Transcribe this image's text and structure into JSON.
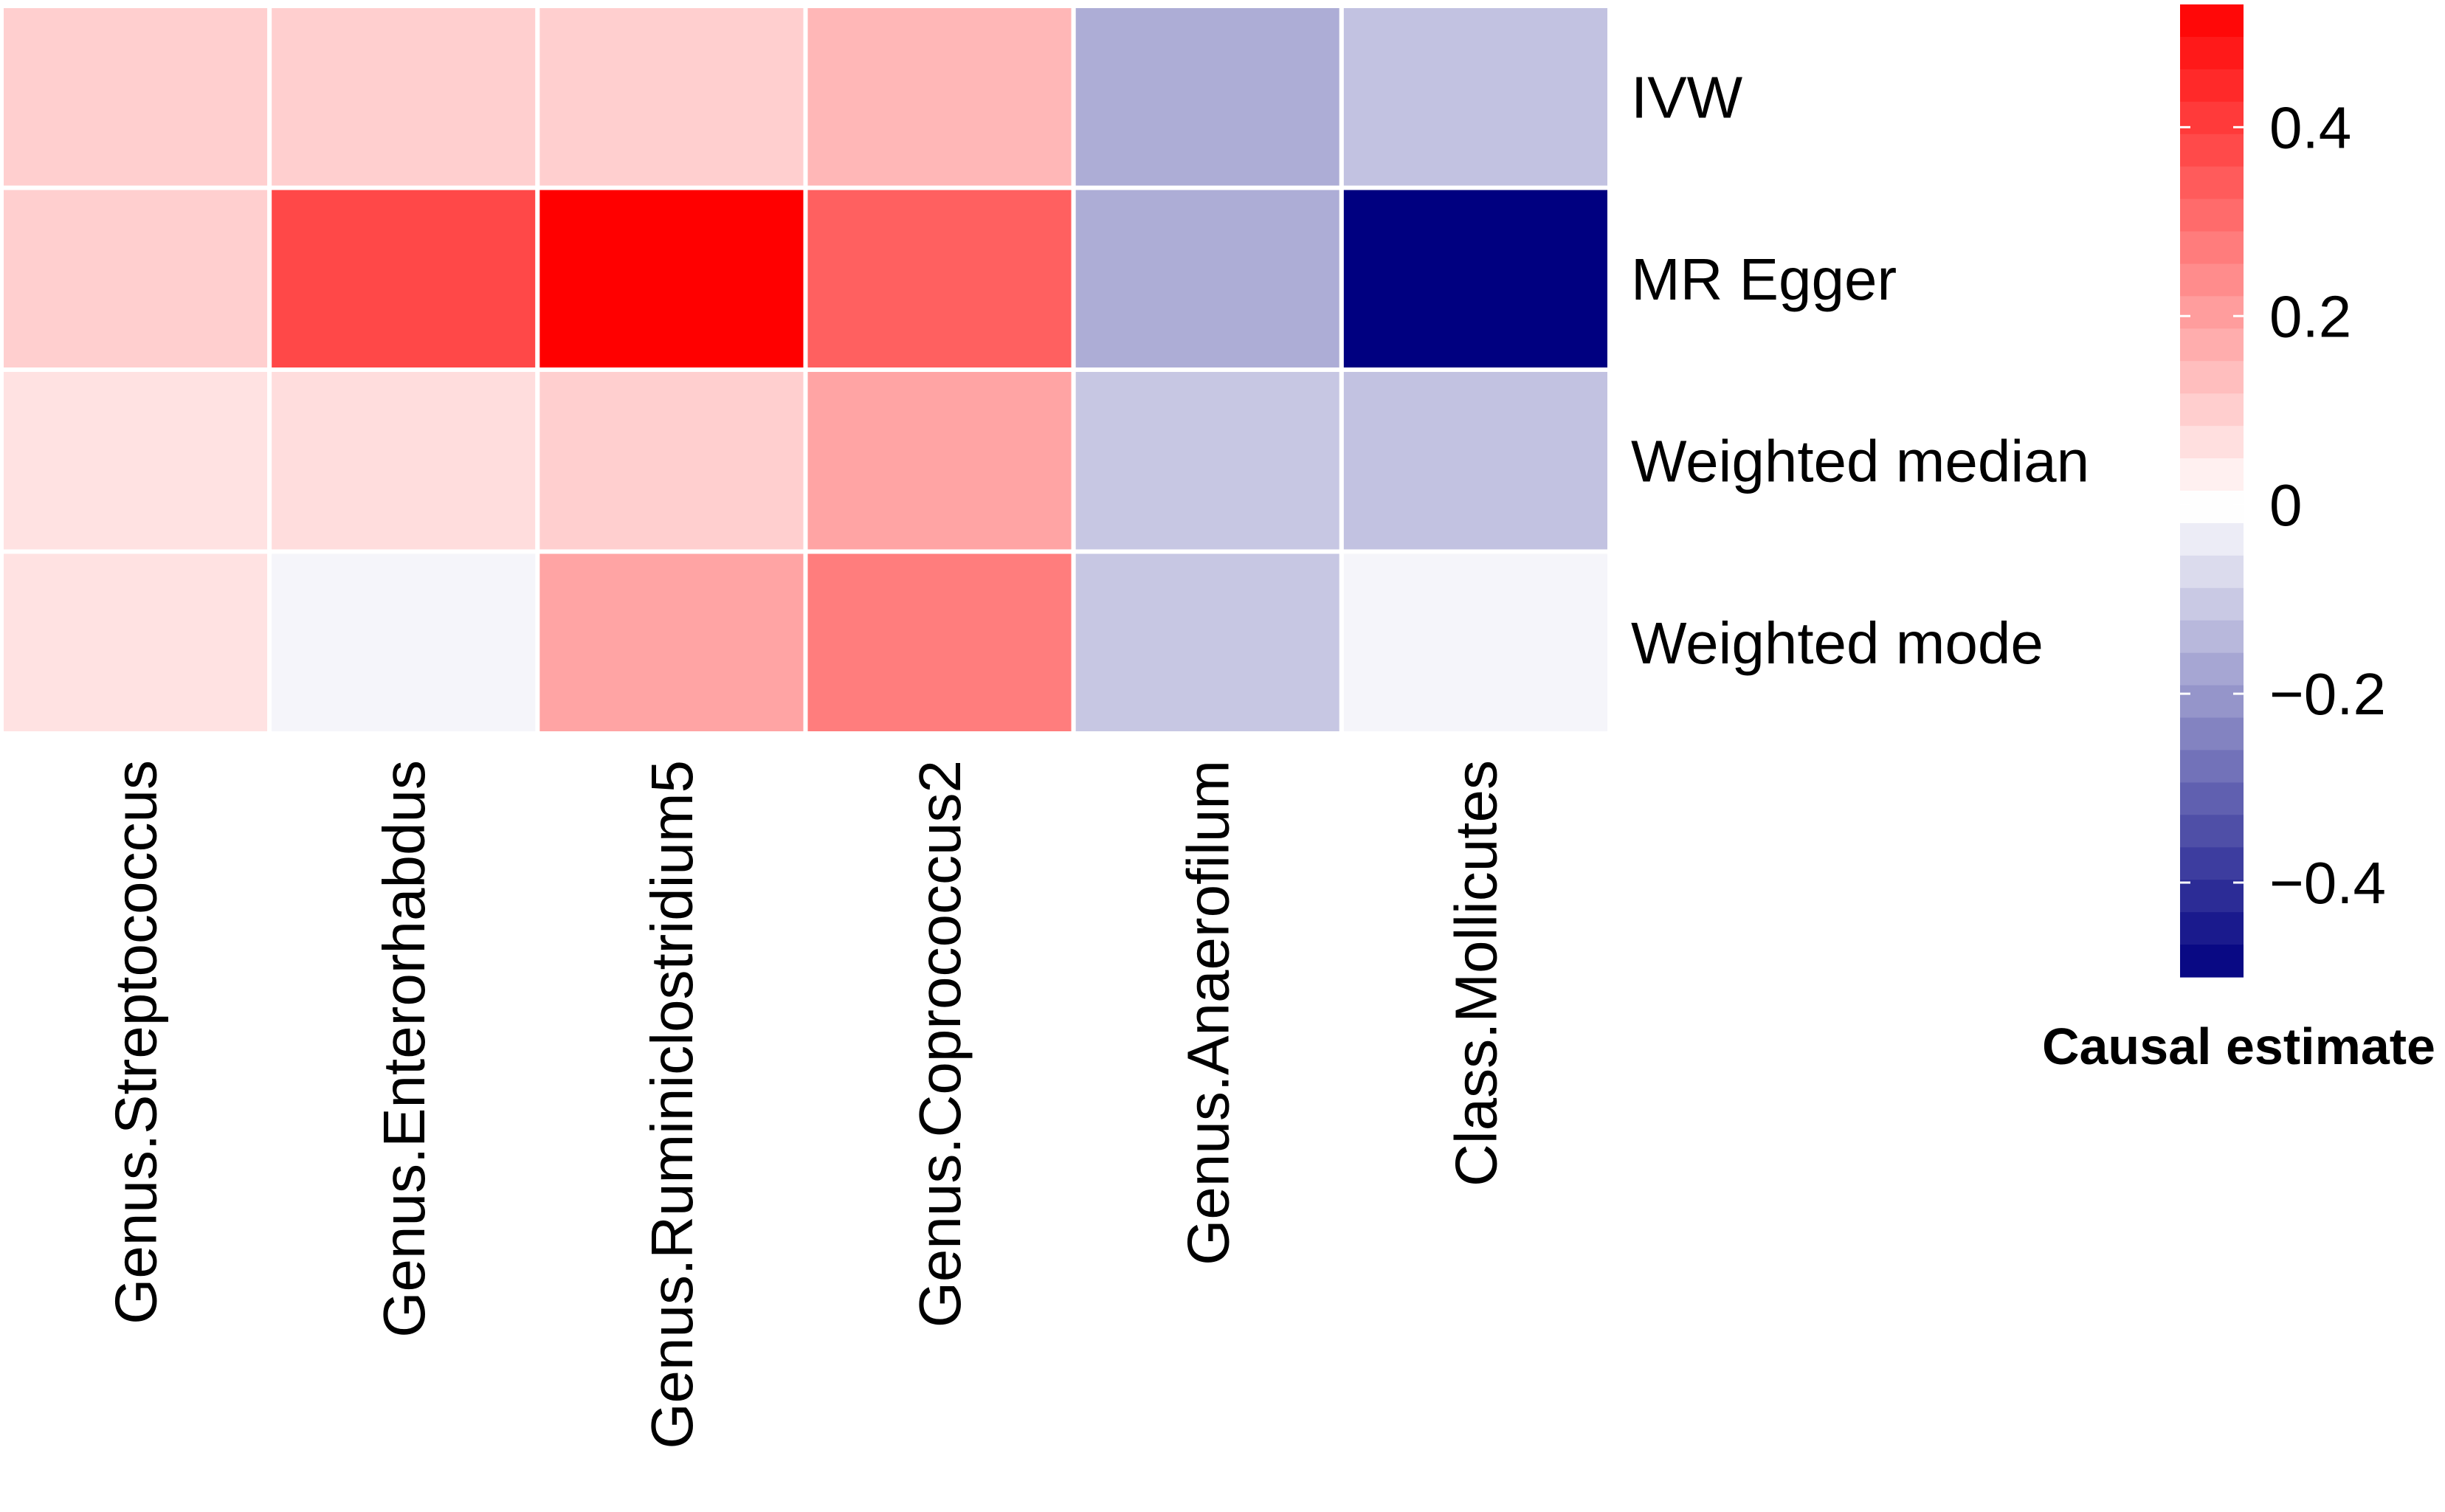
{
  "chart_data": {
    "type": "heatmap",
    "title": "",
    "columns": [
      "Genus.Streptococcus",
      "Genus.Enterorhabdus",
      "Genus.Ruminiclostridium5",
      "Genus.Coprococcus2",
      "Genus.Anaerofilum",
      "Class.Mollicutes"
    ],
    "rows": [
      "IVW",
      "MR Egger",
      "Weighted median",
      "Weighted mode"
    ],
    "values": [
      [
        0.1,
        0.1,
        0.1,
        0.15,
        -0.16,
        -0.12
      ],
      [
        0.1,
        0.38,
        0.53,
        0.33,
        -0.16,
        -0.5
      ],
      [
        0.06,
        0.07,
        0.1,
        0.19,
        -0.11,
        -0.12
      ],
      [
        0.06,
        -0.02,
        0.19,
        0.27,
        -0.11,
        -0.02
      ]
    ],
    "colorbar": {
      "title": "Causal estimate",
      "min": -0.5,
      "max": 0.53,
      "ticks": [
        0.4,
        0.2,
        0,
        -0.2,
        -0.4
      ],
      "tick_labels": [
        "0.4",
        "0.2",
        "0",
        "−0.2",
        "−0.4"
      ],
      "low_color": "#000080",
      "mid_color": "#ffffff",
      "high_color": "#ff0000",
      "steps": 30
    },
    "cell_border_color": "#ffffff"
  }
}
